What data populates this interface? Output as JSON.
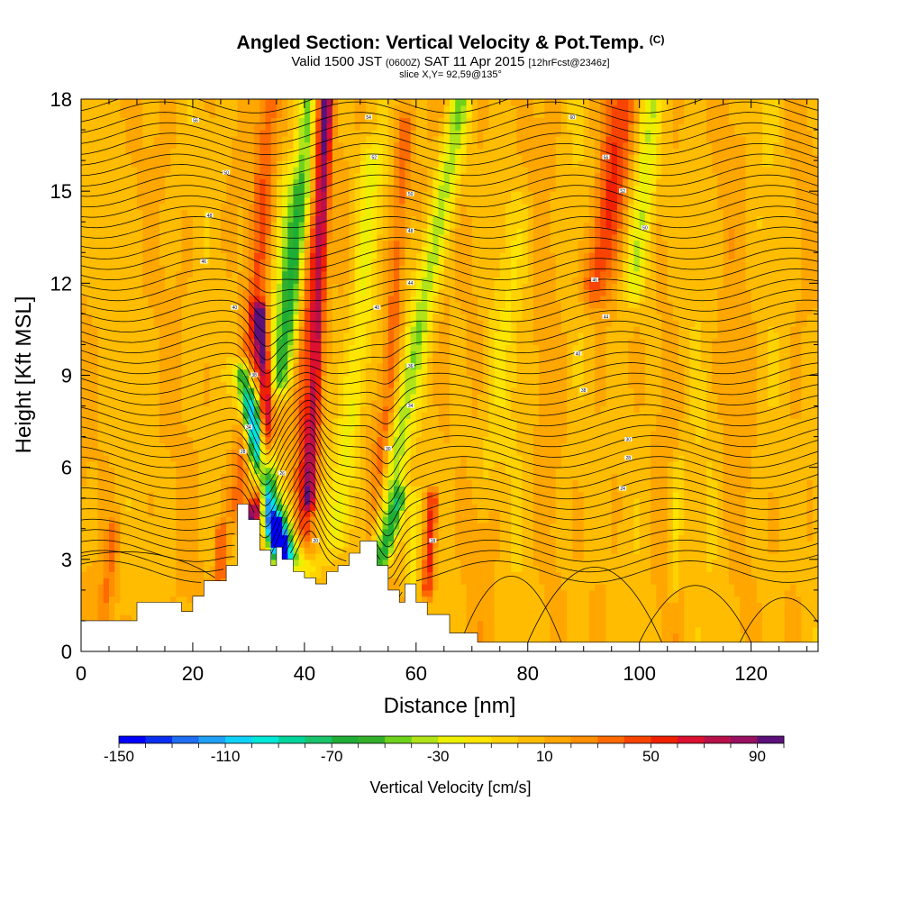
{
  "title": {
    "main": "Angled Section: Vertical Velocity & Pot.Temp.",
    "main_sup": "(C)",
    "valid_prefix": "Valid 1500 JST",
    "valid_z": "(0600Z)",
    "valid_date": "SAT 11 Apr 2015",
    "valid_fcst": "[12hrFcst@2346z]",
    "slice": "slice X,Y= 92,59@135°"
  },
  "chart_data": {
    "type": "heatmap",
    "xlabel": "Distance [nm]",
    "ylabel": "Height [Kft MSL]",
    "xlim": [
      0,
      132
    ],
    "ylim": [
      0,
      18
    ],
    "xticks": [
      0,
      20,
      40,
      60,
      80,
      100,
      120
    ],
    "yticks": [
      0,
      3,
      6,
      9,
      12,
      15,
      18
    ],
    "colorbar": {
      "title": "Vertical Velocity [cm/s]",
      "range": [
        -150,
        100
      ],
      "step": 10,
      "tick_values": [
        -150,
        -110,
        -70,
        -30,
        10,
        50,
        90
      ],
      "tick_labels": [
        "-150",
        "-110",
        "-70",
        "-30",
        "10",
        "50",
        "90"
      ],
      "colors": [
        "#0000ff",
        "#0a2ef0",
        "#1f6ef2",
        "#1fa0f5",
        "#10d2f8",
        "#00e8d8",
        "#00d49a",
        "#18c36a",
        "#1fae35",
        "#33b02a",
        "#6ed21c",
        "#b0e418",
        "#ecf000",
        "#ffe600",
        "#ffd200",
        "#ffbc00",
        "#ffa600",
        "#ff8e00",
        "#ff6a00",
        "#f84400",
        "#f02000",
        "#dc1030",
        "#b8104a",
        "#981060",
        "#5c107a"
      ]
    },
    "terrain_profile": [
      [
        0,
        1
      ],
      [
        10,
        1
      ],
      [
        10,
        1.6
      ],
      [
        18,
        1.6
      ],
      [
        18,
        1.3
      ],
      [
        20,
        1.3
      ],
      [
        20,
        1.8
      ],
      [
        22,
        1.8
      ],
      [
        22,
        2.3
      ],
      [
        26,
        2.3
      ],
      [
        26,
        2.8
      ],
      [
        28,
        2.8
      ],
      [
        28,
        4.8
      ],
      [
        30,
        4.8
      ],
      [
        30,
        4.3
      ],
      [
        32,
        4.3
      ],
      [
        32,
        3.3
      ],
      [
        34,
        3.3
      ],
      [
        34,
        2.8
      ],
      [
        35,
        2.8
      ],
      [
        35,
        3.4
      ],
      [
        36,
        3.4
      ],
      [
        36,
        3.0
      ],
      [
        38,
        3.0
      ],
      [
        38,
        2.6
      ],
      [
        40,
        2.6
      ],
      [
        40,
        2.4
      ],
      [
        42,
        2.4
      ],
      [
        42,
        2.2
      ],
      [
        44,
        2.2
      ],
      [
        44,
        2.6
      ],
      [
        46,
        2.6
      ],
      [
        46,
        2.8
      ],
      [
        48,
        2.8
      ],
      [
        48,
        3.2
      ],
      [
        50,
        3.2
      ],
      [
        50,
        3.6
      ],
      [
        53,
        3.6
      ],
      [
        53,
        2.8
      ],
      [
        55,
        2.8
      ],
      [
        55,
        2.0
      ],
      [
        57,
        2.0
      ],
      [
        57,
        1.6
      ],
      [
        58,
        1.6
      ],
      [
        58,
        2.2
      ],
      [
        60,
        2.2
      ],
      [
        60,
        1.6
      ],
      [
        62,
        1.6
      ],
      [
        62,
        1.2
      ],
      [
        66,
        1.2
      ],
      [
        66,
        0.6
      ],
      [
        71,
        0.6
      ],
      [
        71,
        0.3
      ],
      [
        132,
        0.3
      ]
    ],
    "features": [
      {
        "center": [
          [
            28,
            4.8
          ],
          [
            30,
            8
          ],
          [
            31,
            10.5
          ],
          [
            32,
            13
          ],
          [
            33,
            16
          ],
          [
            34,
            18
          ]
        ],
        "w": 30,
        "hw": 1.4
      },
      {
        "center": [
          [
            30,
            4
          ],
          [
            32,
            5
          ],
          [
            33,
            7
          ],
          [
            33,
            9
          ],
          [
            32,
            11
          ]
        ],
        "w": 95,
        "hw": 0.9
      },
      {
        "center": [
          [
            40,
            2.6
          ],
          [
            40,
            6
          ],
          [
            40,
            9
          ],
          [
            41,
            12
          ],
          [
            42,
            15
          ],
          [
            43,
            18
          ]
        ],
        "w": 40,
        "hw": 1.3
      },
      {
        "center": [
          [
            41,
            5
          ],
          [
            42,
            9
          ],
          [
            43,
            13
          ],
          [
            44,
            18
          ]
        ],
        "w": 55,
        "hw": 0.8
      },
      {
        "center": [
          [
            29,
            9
          ],
          [
            32,
            6
          ],
          [
            34,
            4
          ],
          [
            36,
            3
          ]
        ],
        "w": -90,
        "hw": 1.0
      },
      {
        "center": [
          [
            35,
            4
          ],
          [
            36,
            3.3
          ]
        ],
        "w": -140,
        "hw": 0.8
      },
      {
        "center": [
          [
            31,
            8
          ],
          [
            34,
            5
          ],
          [
            37,
            3.5
          ],
          [
            40,
            2.7
          ]
        ],
        "w": -70,
        "hw": 1.4
      },
      {
        "center": [
          [
            36,
            9
          ],
          [
            38,
            12
          ],
          [
            40,
            15
          ],
          [
            41,
            18
          ]
        ],
        "w": -55,
        "hw": 1.3
      },
      {
        "center": [
          [
            34,
            9
          ],
          [
            36,
            12
          ],
          [
            38,
            15
          ]
        ],
        "w": -30,
        "hw": 1.8
      },
      {
        "center": [
          [
            46,
            4
          ],
          [
            48,
            7
          ],
          [
            50,
            10
          ],
          [
            51,
            13
          ],
          [
            52,
            16
          ]
        ],
        "w": -30,
        "hw": 1.6
      },
      {
        "center": [
          [
            52,
            3.6
          ],
          [
            55,
            8
          ],
          [
            56,
            11
          ],
          [
            57,
            14
          ],
          [
            58,
            17
          ]
        ],
        "w": 30,
        "hw": 1.1
      },
      {
        "center": [
          [
            53,
            3.5
          ],
          [
            56,
            6
          ],
          [
            59,
            9
          ],
          [
            62,
            12
          ],
          [
            65,
            15
          ],
          [
            68,
            18
          ]
        ],
        "w": -45,
        "hw": 1.4
      },
      {
        "center": [
          [
            54,
            3
          ],
          [
            57,
            5
          ]
        ],
        "w": -60,
        "hw": 0.9
      },
      {
        "center": [
          [
            62,
            2
          ],
          [
            63,
            5
          ]
        ],
        "w": 50,
        "hw": 0.7
      },
      {
        "center": [
          [
            59,
            2
          ],
          [
            60,
            5
          ]
        ],
        "w": -25,
        "hw": 0.7
      },
      {
        "center": [
          [
            92,
            12
          ],
          [
            95,
            15
          ],
          [
            97,
            18
          ]
        ],
        "w": 40,
        "hw": 1.8
      },
      {
        "center": [
          [
            99,
            12
          ],
          [
            101,
            15
          ],
          [
            102,
            18
          ]
        ],
        "w": -35,
        "hw": 1.4
      },
      {
        "center": [
          [
            72,
            6
          ],
          [
            75,
            10
          ],
          [
            79,
            14
          ]
        ],
        "w": -12,
        "hw": 2.2
      },
      {
        "center": [
          [
            106,
            2
          ],
          [
            107,
            6
          ]
        ],
        "w": -20,
        "hw": 0.8
      },
      {
        "center": [
          [
            25,
            1
          ],
          [
            25,
            4
          ]
        ],
        "w": 30,
        "hw": 0.7
      },
      {
        "center": [
          [
            4,
            1
          ],
          [
            6,
            4
          ]
        ],
        "w": 20,
        "hw": 0.9
      }
    ],
    "contour_labels": [
      {
        "x": 20.5,
        "y": 17.3,
        "text": "56"
      },
      {
        "x": 26,
        "y": 15.6,
        "text": "50"
      },
      {
        "x": 23,
        "y": 14.2,
        "text": "48"
      },
      {
        "x": 22,
        "y": 12.7,
        "text": "46"
      },
      {
        "x": 27.5,
        "y": 11.2,
        "text": "40"
      },
      {
        "x": 31,
        "y": 9.0,
        "text": "38"
      },
      {
        "x": 30,
        "y": 7.3,
        "text": "34"
      },
      {
        "x": 29,
        "y": 6.5,
        "text": "28"
      },
      {
        "x": 36,
        "y": 5.8,
        "text": "26"
      },
      {
        "x": 42,
        "y": 3.6,
        "text": "20"
      },
      {
        "x": 51.5,
        "y": 17.4,
        "text": "54"
      },
      {
        "x": 52.5,
        "y": 16.1,
        "text": "52"
      },
      {
        "x": 59,
        "y": 14.9,
        "text": "50"
      },
      {
        "x": 59,
        "y": 13.7,
        "text": "48"
      },
      {
        "x": 59,
        "y": 12.0,
        "text": "44"
      },
      {
        "x": 53,
        "y": 11.2,
        "text": "40"
      },
      {
        "x": 59,
        "y": 9.3,
        "text": "36"
      },
      {
        "x": 59,
        "y": 8.0,
        "text": "34"
      },
      {
        "x": 55,
        "y": 6.6,
        "text": "30"
      },
      {
        "x": 63,
        "y": 3.6,
        "text": "18"
      },
      {
        "x": 88,
        "y": 17.4,
        "text": "60"
      },
      {
        "x": 94,
        "y": 16.1,
        "text": "56"
      },
      {
        "x": 97,
        "y": 15.0,
        "text": "52"
      },
      {
        "x": 101,
        "y": 13.8,
        "text": "50"
      },
      {
        "x": 92,
        "y": 12.1,
        "text": "46"
      },
      {
        "x": 94,
        "y": 10.9,
        "text": "44"
      },
      {
        "x": 89,
        "y": 9.7,
        "text": "40"
      },
      {
        "x": 90,
        "y": 8.5,
        "text": "38"
      },
      {
        "x": 98,
        "y": 6.9,
        "text": "30"
      },
      {
        "x": 98,
        "y": 6.3,
        "text": "28"
      },
      {
        "x": 97,
        "y": 5.3,
        "text": "24"
      }
    ]
  }
}
